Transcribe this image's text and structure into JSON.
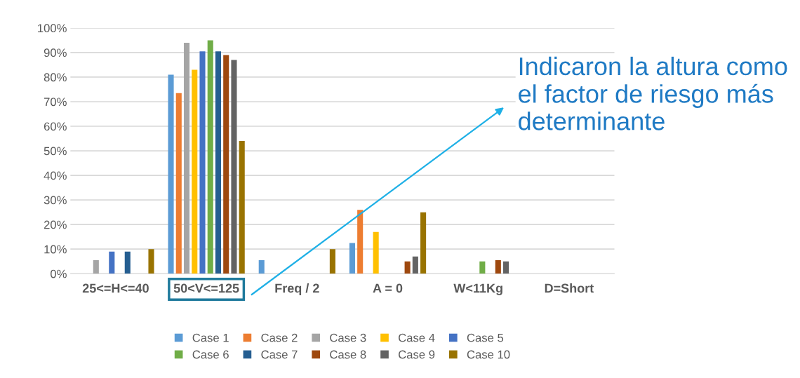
{
  "chart_data": {
    "type": "bar",
    "categories": [
      "25<=H<=40",
      "50<V<=125",
      "Freq / 2",
      "A = 0",
      "W<11Kg",
      "D=Short"
    ],
    "series": [
      {
        "name": "Case 1",
        "color": "#5b9bd5",
        "values": [
          0,
          81,
          5.5,
          12.5,
          0,
          0
        ]
      },
      {
        "name": "Case 2",
        "color": "#ed7d31",
        "values": [
          0,
          73.5,
          0,
          26,
          0,
          0
        ]
      },
      {
        "name": "Case 3",
        "color": "#a5a5a5",
        "values": [
          5.5,
          94,
          0,
          0,
          0,
          0
        ]
      },
      {
        "name": "Case 4",
        "color": "#ffc000",
        "values": [
          0,
          83,
          0,
          17,
          0,
          0
        ]
      },
      {
        "name": "Case 5",
        "color": "#4472c4",
        "values": [
          9,
          90.5,
          0,
          0,
          0,
          0
        ]
      },
      {
        "name": "Case 6",
        "color": "#70ad47",
        "values": [
          0,
          95,
          0,
          0,
          5,
          0
        ]
      },
      {
        "name": "Case 7",
        "color": "#255e91",
        "values": [
          9,
          90.5,
          0,
          0,
          0,
          0
        ]
      },
      {
        "name": "Case 8",
        "color": "#9e480e",
        "values": [
          0,
          89,
          0,
          5,
          5.5,
          0
        ]
      },
      {
        "name": "Case 9",
        "color": "#636363",
        "values": [
          0,
          87,
          0,
          7,
          5,
          0
        ]
      },
      {
        "name": "Case 10",
        "color": "#997300",
        "values": [
          10,
          54,
          10,
          25,
          0,
          0
        ]
      }
    ],
    "ylim": [
      0,
      100
    ],
    "yticks": [
      {
        "value": 0,
        "label": "0%"
      },
      {
        "value": 10,
        "label": "10%"
      },
      {
        "value": 20,
        "label": "20%"
      },
      {
        "value": 30,
        "label": "30%"
      },
      {
        "value": 40,
        "label": "40%"
      },
      {
        "value": 50,
        "label": "50%"
      },
      {
        "value": 60,
        "label": "60%"
      },
      {
        "value": 70,
        "label": "70%"
      },
      {
        "value": 80,
        "label": "80%"
      },
      {
        "value": 90,
        "label": "90%"
      },
      {
        "value": 100,
        "label": "100%"
      }
    ],
    "grid": "y",
    "legend": "bottom",
    "annotations": [
      "Indicaron la altura como el factor de riesgo más determinante"
    ]
  }
}
